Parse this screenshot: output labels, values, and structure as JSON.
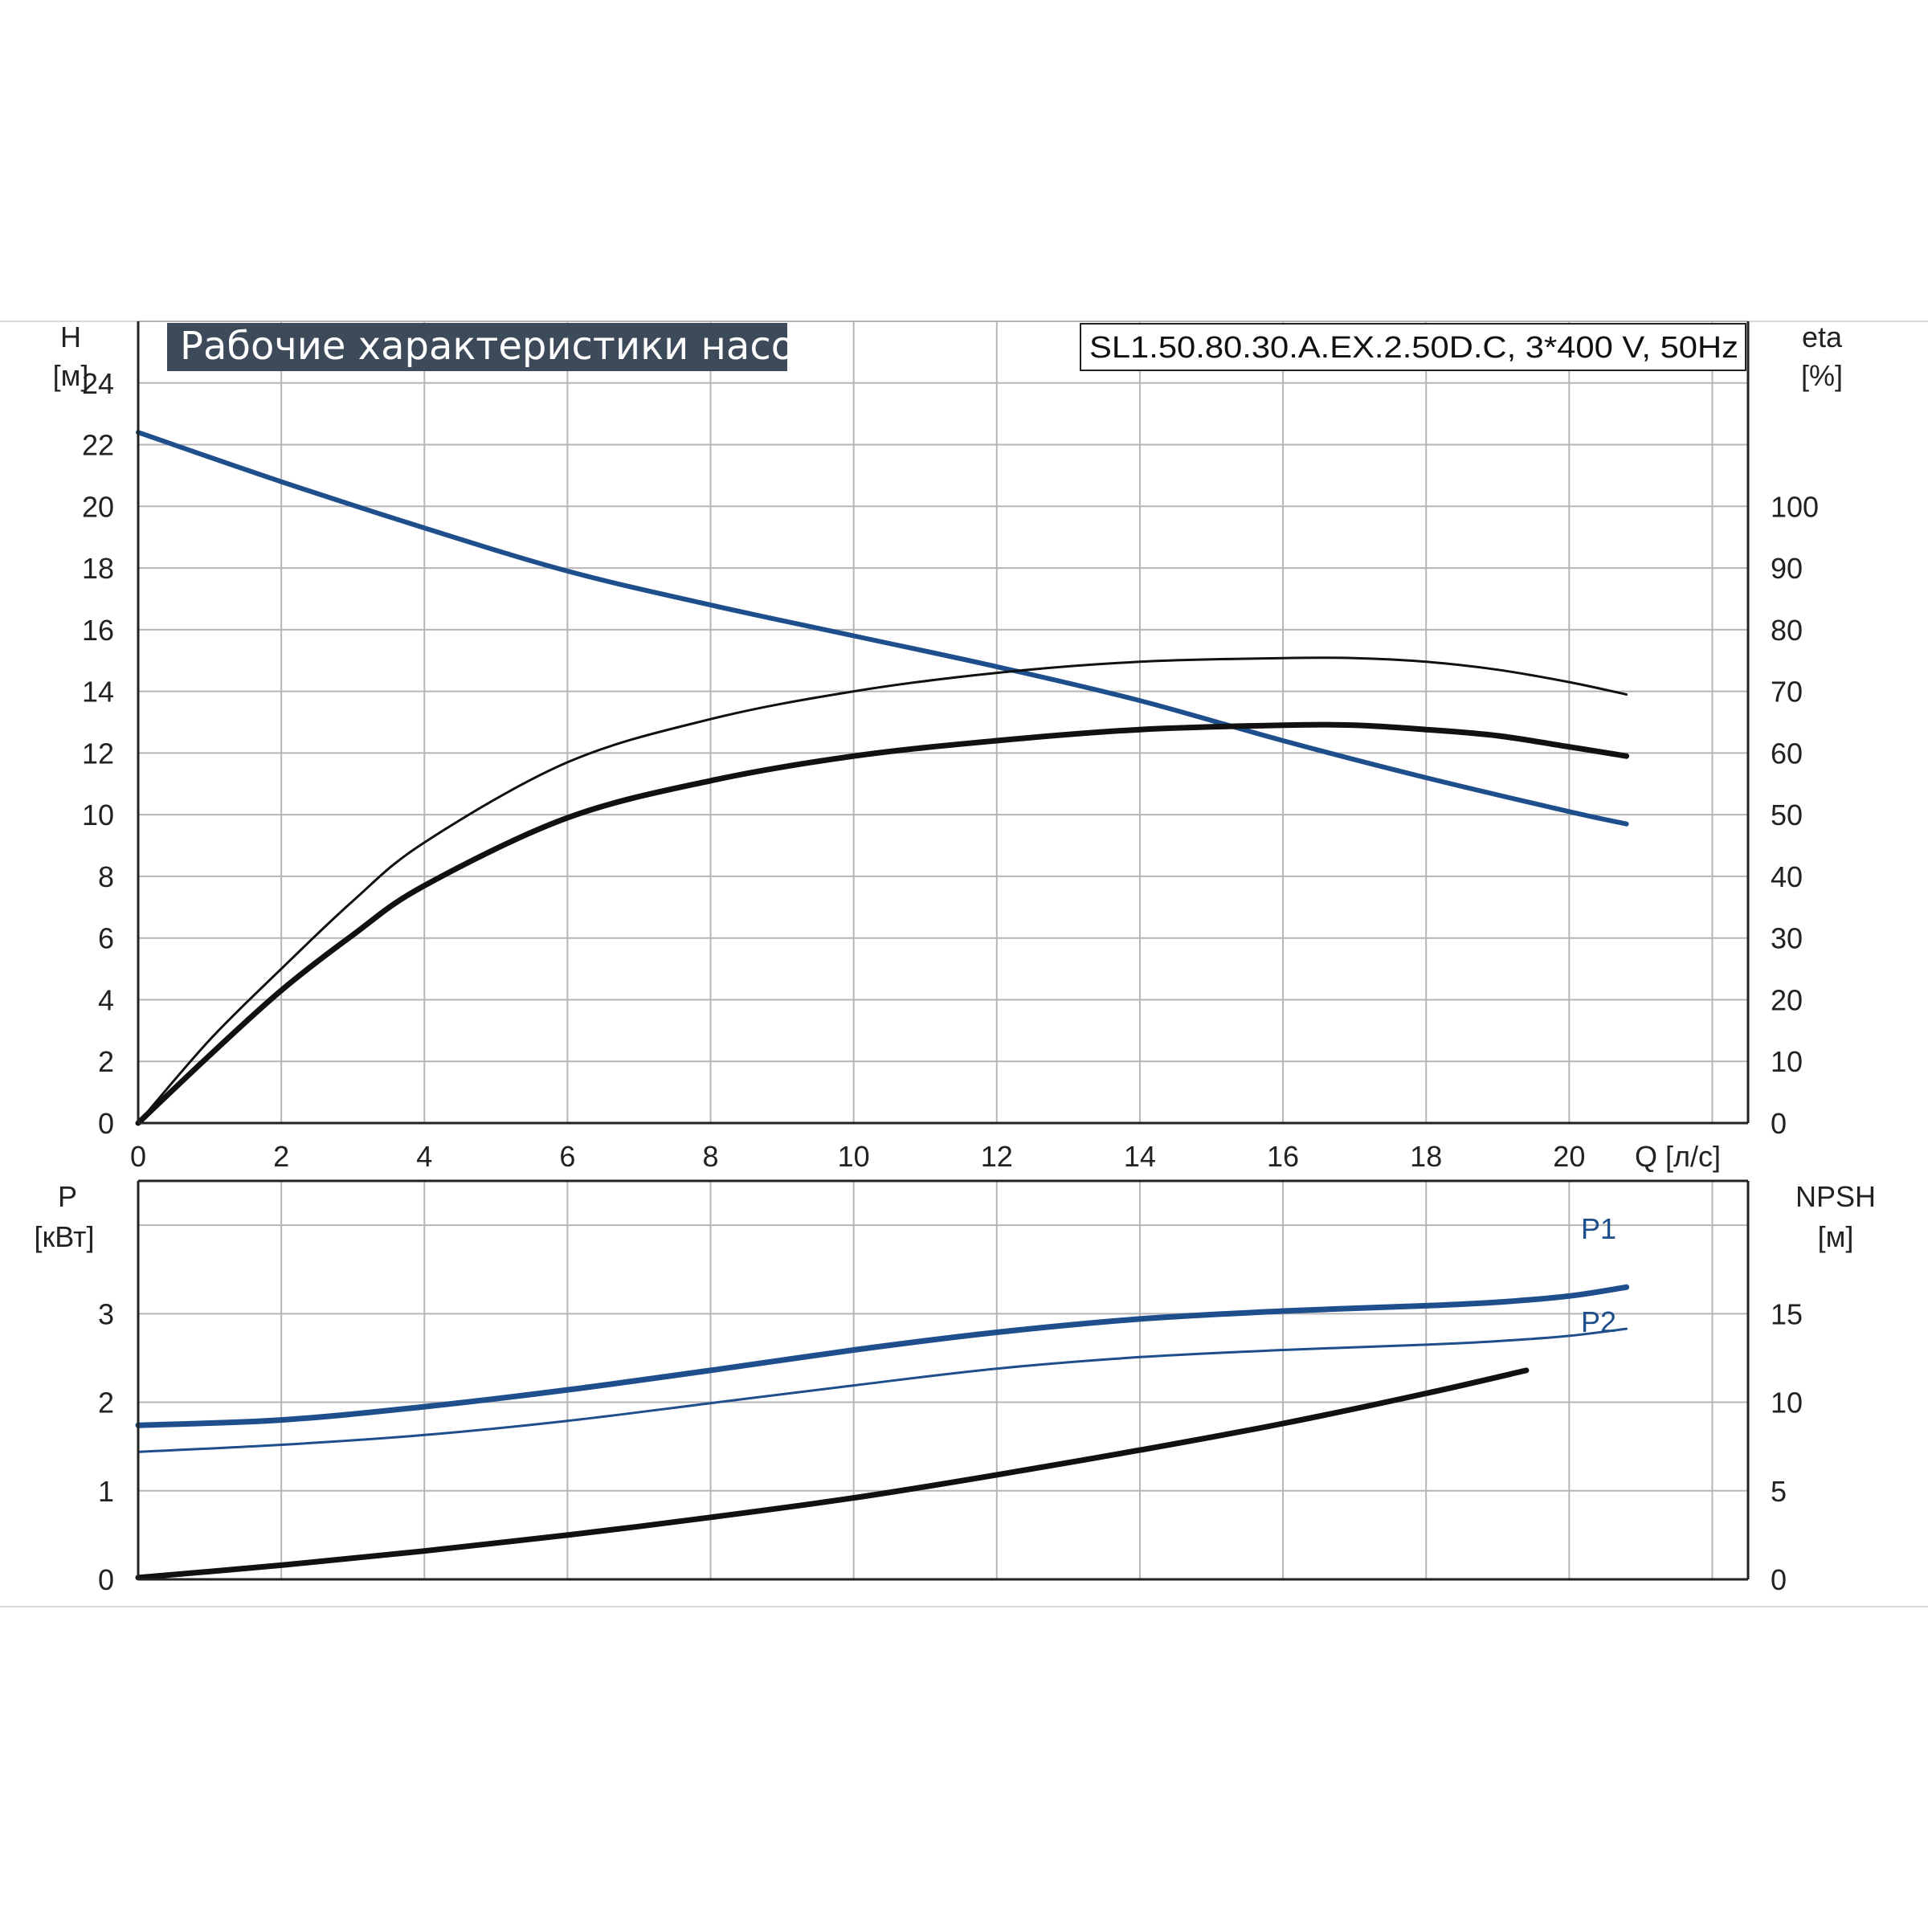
{
  "title": "Рабочие характеристики насоса",
  "model": "SL1.50.80.30.A.EX.2.50D.C, 3*400 V, 50Hz",
  "colors": {
    "blue": "#1f4e8c",
    "black": "#111111",
    "grid": "#b5b5b5",
    "title_bg": "#3d4a59"
  },
  "chart_data": [
    {
      "type": "line",
      "panel": "top",
      "x_label": "Q [л/с]",
      "y_left_label": [
        "H",
        "[м]"
      ],
      "y_right_label": [
        "eta",
        "[%]"
      ],
      "xlim": [
        0,
        22.5
      ],
      "ylim_left": [
        0,
        26
      ],
      "ylim_right": [
        0,
        130
      ],
      "x_ticks": [
        0,
        2,
        4,
        6,
        8,
        10,
        12,
        14,
        16,
        18,
        20
      ],
      "y_left_ticks": [
        0,
        2,
        4,
        6,
        8,
        10,
        12,
        14,
        16,
        18,
        20,
        22,
        24
      ],
      "y_right_ticks": [
        0,
        10,
        20,
        30,
        40,
        50,
        60,
        70,
        80,
        90,
        100
      ],
      "grid": true,
      "series": [
        {
          "key": "H",
          "axis": "left",
          "color": "#1f4e8c",
          "width": 6,
          "x": [
            0,
            2,
            4,
            6,
            8,
            10,
            12,
            14,
            16,
            18,
            20,
            20.8
          ],
          "y": [
            22.4,
            20.8,
            19.3,
            17.9,
            16.8,
            15.8,
            14.8,
            13.7,
            12.4,
            11.2,
            10.1,
            9.7
          ]
        },
        {
          "key": "eta_thin",
          "axis": "right",
          "color": "#111111",
          "width": 3,
          "x": [
            0,
            1,
            2,
            3,
            4,
            6,
            8,
            10,
            12,
            14,
            16,
            17,
            18,
            19,
            20,
            20.8
          ],
          "y": [
            0,
            13.5,
            25,
            36,
            45.5,
            58.5,
            65.5,
            70,
            73,
            74.8,
            75.4,
            75.4,
            74.8,
            73.5,
            71.5,
            69.5
          ]
        },
        {
          "key": "eta_thick",
          "axis": "right",
          "color": "#111111",
          "width": 7,
          "x": [
            0,
            1,
            2,
            3,
            4,
            6,
            8,
            10,
            12,
            14,
            16,
            17,
            18,
            19,
            20,
            20.8
          ],
          "y": [
            0,
            11,
            21.5,
            30.5,
            38.5,
            49.5,
            55.5,
            59.5,
            62,
            63.8,
            64.5,
            64.5,
            63.8,
            62.8,
            61,
            59.5
          ]
        }
      ]
    },
    {
      "type": "line",
      "panel": "bottom",
      "y_left_label": [
        "P",
        "[кВт]"
      ],
      "y_right_label": [
        "NPSH",
        "[м]"
      ],
      "xlim": [
        0,
        22.5
      ],
      "ylim_left": [
        0,
        4.5
      ],
      "ylim_right": [
        0,
        22.5
      ],
      "y_left_ticks": [
        0,
        1,
        2,
        3
      ],
      "y_right_ticks": [
        0,
        5,
        10,
        15
      ],
      "grid": true,
      "series": [
        {
          "key": "P1",
          "name": "P1",
          "axis": "left",
          "color": "#1f4e8c",
          "width": 7,
          "x": [
            0,
            2,
            4,
            6,
            8,
            10,
            12,
            14,
            16,
            18,
            19,
            20,
            20.8
          ],
          "y": [
            1.74,
            1.8,
            1.95,
            2.14,
            2.36,
            2.59,
            2.79,
            2.94,
            3.03,
            3.09,
            3.13,
            3.2,
            3.3
          ]
        },
        {
          "key": "P2",
          "name": "P2",
          "axis": "left",
          "color": "#1f4e8c",
          "width": 3,
          "x": [
            0,
            2,
            4,
            6,
            8,
            10,
            12,
            14,
            16,
            18,
            19,
            20,
            20.8
          ],
          "y": [
            1.44,
            1.52,
            1.63,
            1.79,
            1.99,
            2.19,
            2.38,
            2.51,
            2.59,
            2.65,
            2.69,
            2.75,
            2.83
          ]
        },
        {
          "key": "NPSH",
          "axis": "right",
          "color": "#111111",
          "width": 7,
          "x": [
            0,
            2,
            4,
            6,
            8,
            10,
            12,
            14,
            16,
            18,
            19.4
          ],
          "y": [
            0.1,
            0.8,
            1.6,
            2.5,
            3.5,
            4.6,
            5.9,
            7.3,
            8.8,
            10.5,
            11.8
          ]
        }
      ]
    }
  ]
}
